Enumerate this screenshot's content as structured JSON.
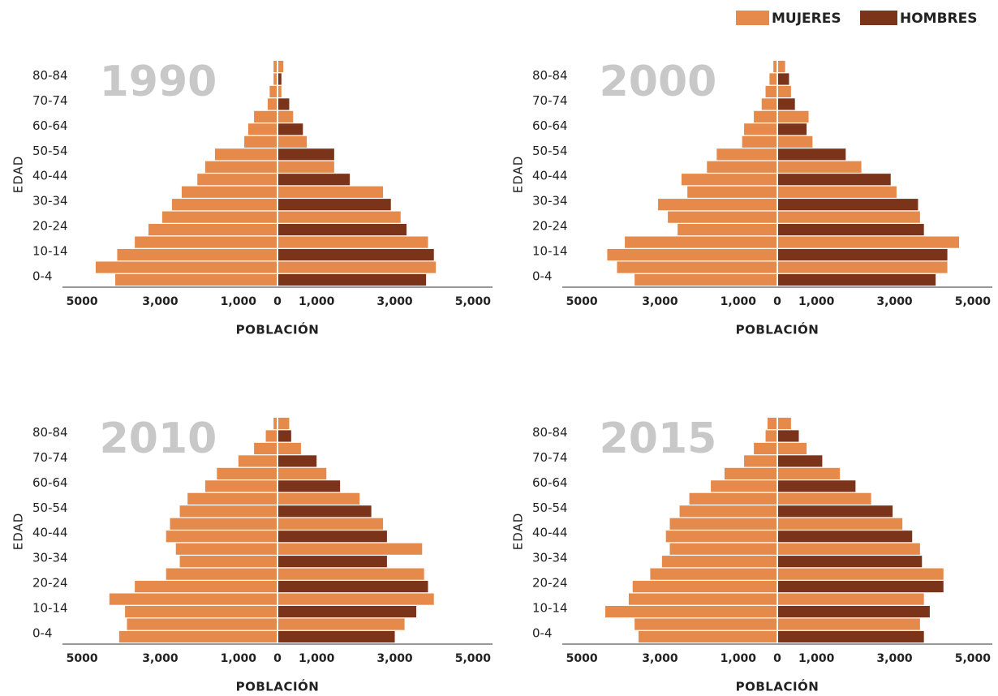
{
  "chart_data": [
    {
      "type": "pyramid",
      "title": "1990",
      "xlabel": "POBLACIÓN",
      "ylabel": "EDAD",
      "categories": [
        "0-4",
        null,
        "10-14",
        null,
        "20-24",
        null,
        "30-34",
        null,
        "40-44",
        null,
        "50-54",
        null,
        "60-64",
        null,
        "70-74",
        null,
        "80-84",
        null
      ],
      "series": [
        {
          "name": "MUJERES",
          "color": "#e58a4a",
          "values": [
            4150,
            4650,
            4100,
            3650,
            3300,
            2950,
            2700,
            2450,
            2050,
            1850,
            1600,
            850,
            750,
            600,
            250,
            200,
            100,
            100
          ]
        },
        {
          "name": "HOMBRES",
          "color": "#7b3419",
          "alternate_color": "#e58a4a",
          "values": [
            3800,
            4050,
            4000,
            3850,
            3300,
            3150,
            2900,
            2700,
            1850,
            1450,
            1450,
            750,
            650,
            400,
            300,
            100,
            100,
            150
          ]
        }
      ],
      "xlim": [
        -5500,
        5500
      ],
      "xticks": [
        {
          "value": -5000,
          "label": "5000"
        },
        {
          "value": -3000,
          "label": "3,000"
        },
        {
          "value": -1000,
          "label": "1,000"
        },
        0,
        {
          "value": 1000,
          "label": "1,000"
        },
        {
          "value": 3000,
          "label": "3,000"
        },
        {
          "value": 5000,
          "label": "5,000"
        }
      ]
    },
    {
      "type": "pyramid",
      "title": "2000",
      "xlabel": "POBLACIÓN",
      "ylabel": "EDAD",
      "categories": [
        "0-4",
        null,
        "10-14",
        null,
        "20-24",
        null,
        "30-34",
        null,
        "40-44",
        null,
        "50-54",
        null,
        "60-64",
        null,
        "70-74",
        null,
        "80-84",
        null
      ],
      "series": [
        {
          "name": "MUJERES",
          "color": "#e58a4a",
          "values": [
            3650,
            4100,
            4350,
            3900,
            2550,
            2800,
            3050,
            2300,
            2450,
            1800,
            1550,
            900,
            850,
            600,
            400,
            300,
            200,
            100
          ]
        },
        {
          "name": "HOMBRES",
          "color": "#7b3419",
          "alternate_color": "#e58a4a",
          "values": [
            4050,
            4350,
            4350,
            4650,
            3750,
            3650,
            3600,
            3050,
            2900,
            2150,
            1750,
            900,
            750,
            800,
            450,
            350,
            300,
            200
          ]
        }
      ],
      "xlim": [
        -5500,
        5500
      ],
      "xticks": [
        {
          "value": -5000,
          "label": "5000"
        },
        {
          "value": -3000,
          "label": "3,000"
        },
        {
          "value": -1000,
          "label": "1,000"
        },
        0,
        {
          "value": 1000,
          "label": "1,000"
        },
        {
          "value": 3000,
          "label": "3,000"
        },
        {
          "value": 5000,
          "label": "5,000"
        }
      ]
    },
    {
      "type": "pyramid",
      "title": "2010",
      "xlabel": "POBLACIÓN",
      "ylabel": "EDAD",
      "categories": [
        "0-4",
        null,
        "10-14",
        null,
        "20-24",
        null,
        "30-34",
        null,
        "40-44",
        null,
        "50-54",
        null,
        "60-64",
        null,
        "70-74",
        null,
        "80-84",
        null
      ],
      "series": [
        {
          "name": "MUJERES",
          "color": "#e58a4a",
          "values": [
            4050,
            3850,
            3900,
            4300,
            3650,
            2850,
            2500,
            2600,
            2850,
            2750,
            2500,
            2300,
            1850,
            1550,
            1000,
            600,
            300,
            100
          ]
        },
        {
          "name": "HOMBRES",
          "color": "#7b3419",
          "alternate_color": "#e58a4a",
          "values": [
            3000,
            3250,
            3550,
            4000,
            3850,
            3750,
            2800,
            3700,
            2800,
            2700,
            2400,
            2100,
            1600,
            1250,
            1000,
            600,
            350,
            300
          ]
        }
      ],
      "xlim": [
        -5500,
        5500
      ],
      "xticks": [
        {
          "value": -5000,
          "label": "5000"
        },
        {
          "value": -3000,
          "label": "3,000"
        },
        {
          "value": -1000,
          "label": "1,000"
        },
        0,
        {
          "value": 1000,
          "label": "1,000"
        },
        {
          "value": 3000,
          "label": "3,000"
        },
        {
          "value": 5000,
          "label": "5,000"
        }
      ]
    },
    {
      "type": "pyramid",
      "title": "2015",
      "xlabel": "POBLACIÓN",
      "ylabel": "EDAD",
      "categories": [
        "0-4",
        null,
        "10-14",
        null,
        "20-24",
        null,
        "30-34",
        null,
        "40-44",
        null,
        "50-54",
        null,
        "60-64",
        null,
        "70-74",
        null,
        "80-84",
        null
      ],
      "series": [
        {
          "name": "MUJERES",
          "color": "#e58a4a",
          "values": [
            3550,
            3650,
            4400,
            3800,
            3700,
            3250,
            2950,
            2750,
            2850,
            2750,
            2500,
            2250,
            1700,
            1350,
            850,
            600,
            300,
            250
          ]
        },
        {
          "name": "HOMBRES",
          "color": "#7b3419",
          "alternate_color": "#e58a4a",
          "values": [
            3750,
            3650,
            3900,
            3750,
            4250,
            4250,
            3700,
            3650,
            3450,
            3200,
            2950,
            2400,
            2000,
            1600,
            1150,
            750,
            550,
            350
          ]
        }
      ],
      "xlim": [
        -5500,
        5500
      ],
      "xticks": [
        {
          "value": -5000,
          "label": "5000"
        },
        {
          "value": -3000,
          "label": "3,000"
        },
        {
          "value": -1000,
          "label": "1,000"
        },
        0,
        {
          "value": 1000,
          "label": "1,000"
        },
        {
          "value": 3000,
          "label": "3,000"
        },
        {
          "value": 5000,
          "label": "5,000"
        }
      ]
    }
  ]
}
